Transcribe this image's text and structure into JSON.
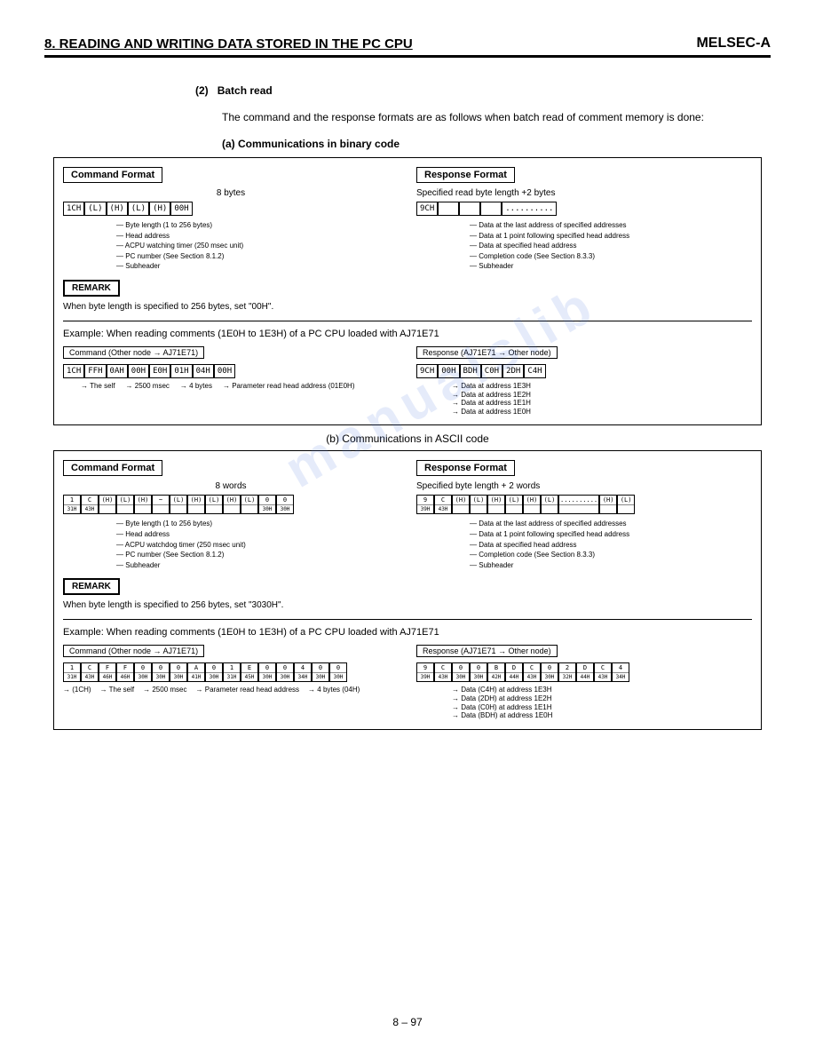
{
  "header": {
    "chapter": "8. READING AND WRITING DATA STORED IN THE PC CPU",
    "brand": "MELSEC-A"
  },
  "section": {
    "num": "(2)",
    "title": "Batch read",
    "intro": "The command and the response formats are as follows when batch read of comment memory is done:",
    "sub_a": "(a) Communications in binary code",
    "sub_b": "(b) Communications in ASCII code"
  },
  "binary": {
    "cmd_title": "Command Format",
    "cmd_bytes_label": "8 bytes",
    "cmd_cells": [
      "1CH",
      "(L)",
      "(H)",
      "(L)",
      "(H)",
      "00H"
    ],
    "cmd_annots": [
      "Byte length (1 to 256 bytes)",
      "Head address",
      "ACPU watching timer (250 msec unit)",
      "PC number (See Section 8.1.2)",
      "Subheader"
    ],
    "remark_label": "REMARK",
    "remark_text": "When byte length is specified to 256 bytes, set \"00H\".",
    "resp_title": "Response Format",
    "resp_bytes_label": "Specified read byte length +2 bytes",
    "resp_cells": [
      "9CH",
      "",
      "",
      "",
      ".........."
    ],
    "resp_annots": [
      "Data at the last address of specified addresses",
      "Data at 1 point following specified head address",
      "Data at specified head address",
      "Completion code (See Section 8.3.3)",
      "Subheader"
    ],
    "example_title": "Example:    When reading comments (1E0H to 1E3H) of a PC CPU loaded with AJ71E71",
    "example_cmd_label": "Command (Other node → AJ71E71)",
    "example_cmd_cells": [
      "1CH",
      "FFH",
      "0AH",
      "00H",
      "E0H",
      "01H",
      "04H",
      "00H"
    ],
    "example_cmd_annots": [
      "The self",
      "2500 msec",
      "4 bytes",
      "Parameter read head address (01E0H)"
    ],
    "example_resp_label": "Response (AJ71E71 → Other node)",
    "example_resp_cells": [
      "9CH",
      "00H",
      "BDH",
      "C0H",
      "2DH",
      "C4H"
    ],
    "example_resp_annots": [
      "Data at address 1E3H",
      "Data at address 1E2H",
      "Data at address 1E1H",
      "Data at address 1E0H"
    ]
  },
  "ascii": {
    "cmd_title": "Command Format",
    "cmd_words_label": "8 words",
    "cmd_top": [
      "1",
      "C",
      "(H)",
      "(L)",
      "(H)",
      "~",
      "(L)",
      "(H)",
      "(L)",
      "(H)",
      "(L)",
      "0",
      "0"
    ],
    "cmd_bot": [
      "31H",
      "43H",
      "",
      "",
      "",
      "",
      "",
      "",
      "",
      "",
      "",
      "30H",
      "30H"
    ],
    "cmd_annots": [
      "Byte length (1 to 256 bytes)",
      "Head address",
      "ACPU watchdog timer (250 msec unit)",
      "PC number (See Section 8.1.2)",
      "Subheader"
    ],
    "remark_label": "REMARK",
    "remark_text": "When byte length is specified to 256 bytes, set \"3030H\".",
    "resp_title": "Response Format",
    "resp_words_label": "Specified byte length + 2 words",
    "resp_top": [
      "9",
      "C",
      "(H)",
      "(L)",
      "(H)",
      "(L)",
      "(H)",
      "(L)",
      "..........",
      "(H)",
      "(L)"
    ],
    "resp_bot": [
      "39H",
      "43H",
      "",
      "",
      "",
      "",
      "",
      "",
      "",
      "",
      ""
    ],
    "resp_annots": [
      "Data at the last address of specified addresses",
      "Data at 1 point following specified head address",
      "Data at specified head address",
      "Completion code (See Section 8.3.3)",
      "Subheader"
    ],
    "example_title": "Example:    When reading comments (1E0H to 1E3H) of a PC CPU loaded with AJ71E71",
    "example_cmd_label": "Command (Other node → AJ71E71)",
    "example_cmd_top": [
      "1",
      "C",
      "F",
      "F",
      "0",
      "0",
      "0",
      "A",
      "0",
      "1",
      "E",
      "0",
      "0",
      "4",
      "0",
      "0"
    ],
    "example_cmd_bot": [
      "31H",
      "43H",
      "46H",
      "46H",
      "30H",
      "30H",
      "30H",
      "41H",
      "30H",
      "31H",
      "45H",
      "30H",
      "30H",
      "34H",
      "30H",
      "30H"
    ],
    "example_cmd_annots": [
      "(1CH)",
      "The self",
      "2500 msec",
      "Parameter read head address",
      "4 bytes (04H)"
    ],
    "example_resp_label": "Response (AJ71E71 → Other node)",
    "example_resp_top": [
      "9",
      "C",
      "0",
      "0",
      "B",
      "D",
      "C",
      "0",
      "2",
      "D",
      "C",
      "4"
    ],
    "example_resp_bot": [
      "39H",
      "43H",
      "30H",
      "30H",
      "42H",
      "44H",
      "43H",
      "30H",
      "32H",
      "44H",
      "43H",
      "34H"
    ],
    "example_resp_annots": [
      "Data (C4H) at address 1E3H",
      "Data (2DH) at address 1E2H",
      "Data (C0H) at address 1E1H",
      "Data (BDH) at address 1E0H"
    ]
  },
  "page_num": "8 – 97",
  "watermark": "manualslib"
}
